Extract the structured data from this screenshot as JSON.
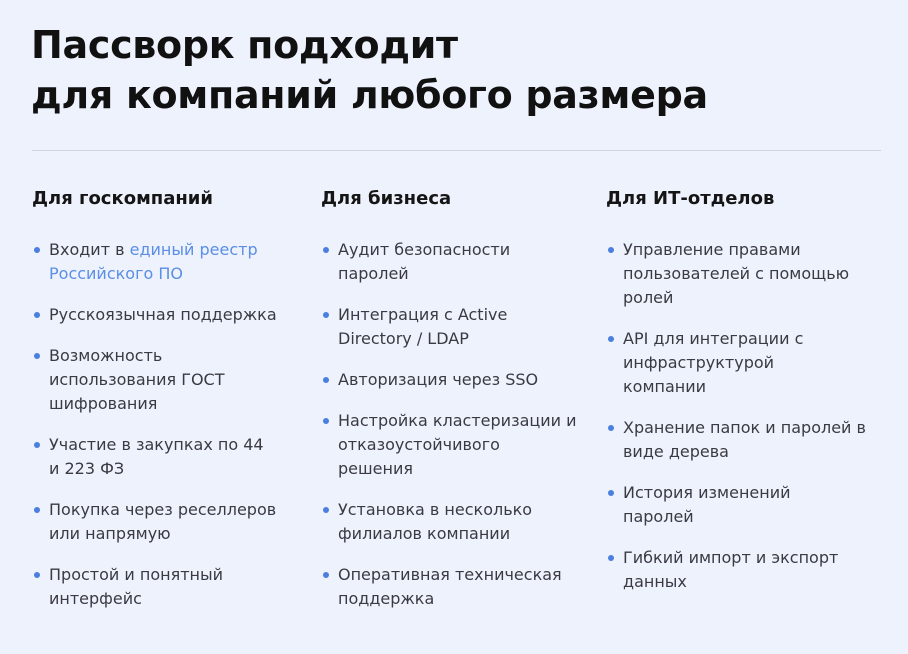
{
  "title_line1": "Пассворк подходит",
  "title_line2": "для компаний любого размера",
  "colors": {
    "background": "#eef2fd",
    "accent": "#4a7fe0",
    "link": "#5b8ee6"
  },
  "columns": [
    {
      "heading": "Для госкомпаний",
      "items": [
        {
          "prefix": "Входит в ",
          "link": "единый реестр Российского ПО"
        },
        {
          "text": "Русскоязычная поддержка"
        },
        {
          "text": "Возможность использования ГОСТ шифрования"
        },
        {
          "text": "Участие в закупках по 44 и 223 ФЗ"
        },
        {
          "text": "Покупка через реселлеров или напрямую"
        },
        {
          "text": "Простой и понятный интерфейс"
        }
      ]
    },
    {
      "heading": "Для бизнеса",
      "items": [
        {
          "text": "Аудит безопасности паролей"
        },
        {
          "text": "Интеграция с Active Directory / LDAP"
        },
        {
          "text": "Авторизация через SSO"
        },
        {
          "text": "Настройка кластеризации и отказоустойчивого решения"
        },
        {
          "text": "Установка в несколько филиалов компании"
        },
        {
          "text": "Оперативная техническая поддержка"
        }
      ]
    },
    {
      "heading": "Для ИТ-отделов",
      "items": [
        {
          "text": "Управление правами пользователей с помощью ролей"
        },
        {
          "text": "API для интеграции с инфраструктурой компании"
        },
        {
          "text": "Хранение папок и паролей в виде дерева"
        },
        {
          "text": "История изменений паролей"
        },
        {
          "text": "Гибкий импорт и экспорт данных"
        }
      ]
    }
  ]
}
